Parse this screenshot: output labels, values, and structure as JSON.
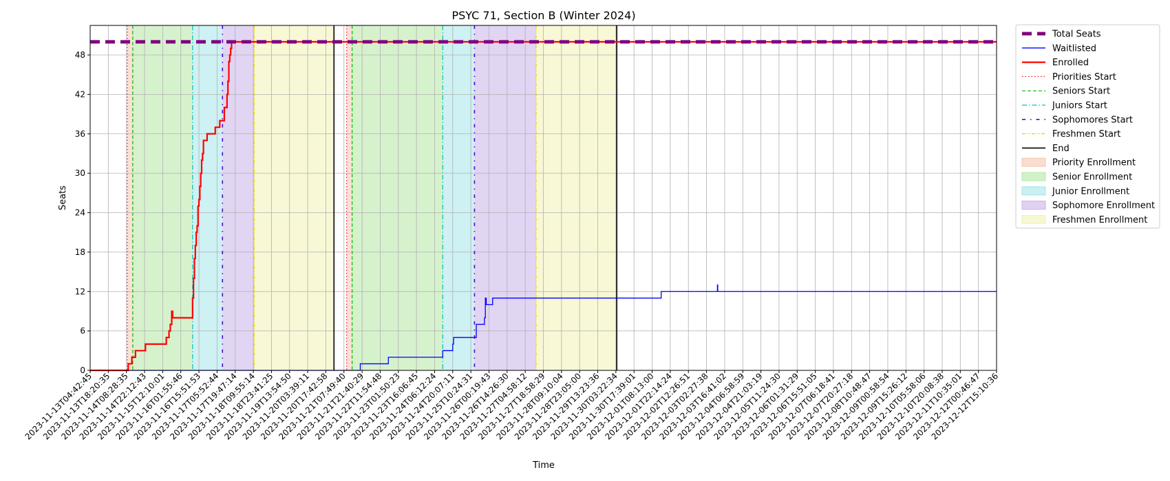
{
  "chart_data": {
    "type": "line",
    "title": "PSYC 71, Section B (Winter 2024)",
    "xlabel": "Time",
    "ylabel": "Seats",
    "ylim": [
      0,
      52.5
    ],
    "yticks": [
      0,
      6,
      12,
      18,
      24,
      30,
      36,
      42,
      48
    ],
    "grid": true,
    "legend_position": "outside-right",
    "x_range": [
      "2023-11-13T04:42:45",
      "2023-12-12T15:10:36"
    ],
    "x_ticks": [
      "2023-11-13T04:42:45",
      "2023-11-13T18:20:35",
      "2023-11-14T08:28:35",
      "2023-11-14T22:12:43",
      "2023-11-15T12:10:01",
      "2023-11-16T01:55:46",
      "2023-11-16T15:51:53",
      "2023-11-17T05:52:44",
      "2023-11-17T19:47:14",
      "2023-11-18T09:55:14",
      "2023-11-18T23:41:25",
      "2023-11-19T13:54:50",
      "2023-11-20T03:39:11",
      "2023-11-20T17:42:58",
      "2023-11-21T07:49:40",
      "2023-11-21T21:40:29",
      "2023-11-22T11:54:48",
      "2023-11-23T01:50:23",
      "2023-11-23T16:06:45",
      "2023-11-24T06:12:24",
      "2023-11-24T20:07:11",
      "2023-11-25T10:24:31",
      "2023-11-26T00:19:43",
      "2023-11-26T14:26:30",
      "2023-11-27T04:58:12",
      "2023-11-27T18:58:29",
      "2023-11-28T09:10:04",
      "2023-11-28T23:05:00",
      "2023-11-29T13:23:36",
      "2023-11-30T03:22:34",
      "2023-11-30T17:39:01",
      "2023-12-01T08:13:00",
      "2023-12-01T22:14:24",
      "2023-12-02T12:26:51",
      "2023-12-03T02:27:38",
      "2023-12-03T16:41:02",
      "2023-12-04T06:58:59",
      "2023-12-04T21:03:19",
      "2023-12-05T11:24:30",
      "2023-12-06T01:31:29",
      "2023-12-06T15:51:05",
      "2023-12-07T06:18:41",
      "2023-12-07T20:27:18",
      "2023-12-08T10:48:47",
      "2023-12-09T00:58:54",
      "2023-12-09T15:26:12",
      "2023-12-10T05:58:06",
      "2023-12-10T20:08:38",
      "2023-12-11T10:35:01",
      "2023-12-12T00:46:47",
      "2023-12-12T15:10:36"
    ],
    "legend": [
      {
        "label": "Total Seats",
        "kind": "line",
        "color": "#800080",
        "width": 5,
        "dash": "14,8"
      },
      {
        "label": "Waitlisted",
        "kind": "line",
        "color": "#0000ff",
        "width": 1.3,
        "dash": ""
      },
      {
        "label": "Enrolled",
        "kind": "line",
        "color": "#ff0000",
        "width": 2.2,
        "dash": ""
      },
      {
        "label": "Priorities Start",
        "kind": "line",
        "color": "#ff0000",
        "width": 1.2,
        "dash": "1.5,3"
      },
      {
        "label": "Seniors Start",
        "kind": "line",
        "color": "#00bb00",
        "width": 1.2,
        "dash": "5,3"
      },
      {
        "label": "Juniors Start",
        "kind": "line",
        "color": "#00bfbf",
        "width": 1.2,
        "dash": "7,3,1.5,3"
      },
      {
        "label": "Sophomores Start",
        "kind": "line",
        "color": "#5500cc",
        "width": 1.6,
        "dash": "5,7,1.5,7"
      },
      {
        "label": "Freshmen Start",
        "kind": "line",
        "color": "#e6d200",
        "width": 1.2,
        "dash": "5,2,1.5,2,1.5,2"
      },
      {
        "label": "End",
        "kind": "line",
        "color": "#000000",
        "width": 1.6,
        "dash": ""
      },
      {
        "label": "Priority Enrollment",
        "kind": "patch",
        "color": "#f7c6b3"
      },
      {
        "label": "Senior Enrollment",
        "kind": "patch",
        "color": "#b5e8a4"
      },
      {
        "label": "Junior Enrollment",
        "kind": "patch",
        "color": "#a6e6ea"
      },
      {
        "label": "Sophomore Enrollment",
        "kind": "patch",
        "color": "#c9b2ea"
      },
      {
        "label": "Freshmen Enrollment",
        "kind": "patch",
        "color": "#f2f2b4"
      }
    ],
    "periods": [
      {
        "name": "Priority Enrollment",
        "color": "#f7c6b3",
        "start": 2.05,
        "end": 2.35
      },
      {
        "name": "Senior Enrollment",
        "color": "#b5e8a4",
        "start": 2.35,
        "end": 5.65
      },
      {
        "name": "Junior Enrollment",
        "color": "#a6e6ea",
        "start": 5.65,
        "end": 7.3
      },
      {
        "name": "Sophomore Enrollment",
        "color": "#c9b2ea",
        "start": 7.3,
        "end": 9.05
      },
      {
        "name": "Freshmen Enrollment",
        "color": "#f2f2b4",
        "start": 9.05,
        "end": 13.45
      },
      {
        "name": "Priority Enrollment",
        "color": "#f7c6b3",
        "start": 14.15,
        "end": 14.45
      },
      {
        "name": "Senior Enrollment",
        "color": "#b5e8a4",
        "start": 14.45,
        "end": 19.45
      },
      {
        "name": "Junior Enrollment",
        "color": "#a6e6ea",
        "start": 19.45,
        "end": 21.2
      },
      {
        "name": "Sophomore Enrollment",
        "color": "#c9b2ea",
        "start": 21.2,
        "end": 24.6
      },
      {
        "name": "Freshmen Enrollment",
        "color": "#f2f2b4",
        "start": 24.6,
        "end": 29.05
      }
    ],
    "markers": [
      {
        "name": "Priorities Start",
        "x": 2.05
      },
      {
        "name": "Seniors Start",
        "x": 2.35
      },
      {
        "name": "Juniors Start",
        "x": 5.65
      },
      {
        "name": "Sophomores Start",
        "x": 7.3
      },
      {
        "name": "Freshmen Start",
        "x": 9.05
      },
      {
        "name": "End",
        "x": 13.45
      },
      {
        "name": "Priorities Start",
        "x": 14.15
      },
      {
        "name": "Seniors Start",
        "x": 14.45
      },
      {
        "name": "Juniors Start",
        "x": 19.45
      },
      {
        "name": "Sophomores Start",
        "x": 21.2
      },
      {
        "name": "Freshmen Start",
        "x": 24.6
      },
      {
        "name": "End",
        "x": 29.05
      }
    ],
    "series": [
      {
        "name": "Total Seats",
        "color": "#800080",
        "step": false,
        "points": [
          [
            0,
            50
          ],
          [
            50,
            50
          ]
        ]
      },
      {
        "name": "Enrolled",
        "color": "#ff0000",
        "step": true,
        "points": [
          [
            0,
            0
          ],
          [
            2.05,
            0
          ],
          [
            2.1,
            1
          ],
          [
            2.25,
            1
          ],
          [
            2.3,
            2
          ],
          [
            2.45,
            2
          ],
          [
            2.5,
            3
          ],
          [
            3.0,
            3
          ],
          [
            3.05,
            4
          ],
          [
            4.15,
            4
          ],
          [
            4.2,
            5
          ],
          [
            4.3,
            5
          ],
          [
            4.35,
            6
          ],
          [
            4.4,
            6
          ],
          [
            4.42,
            7
          ],
          [
            4.47,
            7
          ],
          [
            4.5,
            9
          ],
          [
            4.55,
            8
          ],
          [
            5.6,
            8
          ],
          [
            5.65,
            11
          ],
          [
            5.7,
            14
          ],
          [
            5.75,
            17
          ],
          [
            5.8,
            19
          ],
          [
            5.85,
            21
          ],
          [
            5.9,
            22
          ],
          [
            5.95,
            25
          ],
          [
            6.0,
            26
          ],
          [
            6.05,
            28
          ],
          [
            6.1,
            30
          ],
          [
            6.15,
            32
          ],
          [
            6.2,
            33
          ],
          [
            6.25,
            35
          ],
          [
            6.4,
            35
          ],
          [
            6.45,
            36
          ],
          [
            6.85,
            36
          ],
          [
            6.9,
            37
          ],
          [
            7.1,
            37
          ],
          [
            7.15,
            38
          ],
          [
            7.35,
            38
          ],
          [
            7.4,
            40
          ],
          [
            7.5,
            40
          ],
          [
            7.55,
            42
          ],
          [
            7.6,
            44
          ],
          [
            7.65,
            47
          ],
          [
            7.7,
            48
          ],
          [
            7.75,
            49
          ],
          [
            7.8,
            50
          ],
          [
            50,
            50
          ]
        ]
      },
      {
        "name": "Waitlisted",
        "color": "#0000ff",
        "step": true,
        "points": [
          [
            0,
            0
          ],
          [
            14.85,
            0
          ],
          [
            14.9,
            1
          ],
          [
            16.4,
            1
          ],
          [
            16.45,
            2
          ],
          [
            19.4,
            2
          ],
          [
            19.45,
            3
          ],
          [
            19.95,
            3
          ],
          [
            20.0,
            4
          ],
          [
            20.05,
            5
          ],
          [
            21.25,
            5
          ],
          [
            21.3,
            7
          ],
          [
            21.7,
            7
          ],
          [
            21.75,
            8
          ],
          [
            21.8,
            11
          ],
          [
            21.85,
            10
          ],
          [
            22.15,
            10
          ],
          [
            22.2,
            11
          ],
          [
            31.45,
            11
          ],
          [
            31.5,
            12
          ],
          [
            34.55,
            12
          ],
          [
            34.6,
            13
          ],
          [
            34.62,
            12
          ],
          [
            50,
            12
          ]
        ]
      }
    ]
  }
}
